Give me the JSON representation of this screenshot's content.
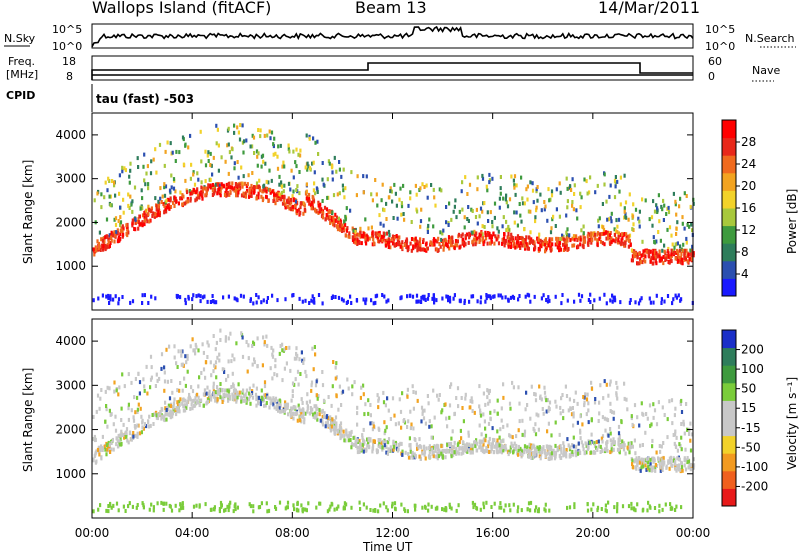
{
  "header": {
    "station": "Wallops Island (fitACF)",
    "beam": "Beam 13",
    "date": "14/Mar/2011"
  },
  "panels": {
    "nsky_label": "N.Sky",
    "nsky_ticks": [
      "10^5",
      "10^0"
    ],
    "nsearch_label": "N.Search",
    "nsearch_ticks": [
      "10^5",
      "10^0"
    ],
    "freq_label_1": "Freq.",
    "freq_label_2": "[MHz]",
    "freq_ticks": [
      "18",
      "8"
    ],
    "nave_label": "Nave",
    "nave_ticks": [
      "60",
      "0"
    ],
    "cpid_label": "CPID",
    "cpid_value": "tau (fast) -503"
  },
  "colors": {
    "power_scale": [
      "#1a1aff",
      "#2b4fb0",
      "#2e7d5b",
      "#3e9a3e",
      "#a8c83c",
      "#f2d22a",
      "#f2a320",
      "#f06a1e",
      "#e8281a",
      "#ff0000"
    ],
    "velocity_scale": [
      "#1a2fc8",
      "#2e7d5b",
      "#3e9a3e",
      "#7acc3a",
      "#c8c8c8",
      "#c8c8c8",
      "#f2d22a",
      "#f29a20",
      "#f0601e",
      "#e81a1a"
    ]
  },
  "chart_data": [
    {
      "type": "heatmap",
      "name": "power",
      "ylabel": "Slant Range [km]",
      "yticks": [
        "1000",
        "2000",
        "3000",
        "4000"
      ],
      "ylim": [
        0,
        4500
      ],
      "xlim": [
        0,
        24
      ],
      "colorbar_label": "Power [dB]",
      "colorbar_ticks": [
        "4",
        "8",
        "12",
        "16",
        "20",
        "24",
        "28"
      ],
      "colorbar_range": [
        0,
        30
      ]
    },
    {
      "type": "heatmap",
      "name": "velocity",
      "ylabel": "Slant Range [km]",
      "yticks": [
        "1000",
        "2000",
        "3000",
        "4000"
      ],
      "ylim": [
        0,
        4500
      ],
      "xlim": [
        0,
        24
      ],
      "colorbar_label": "Velocity [m s⁻¹]",
      "colorbar_ticks": [
        "200",
        "100",
        "50",
        "15",
        "-15",
        "-50",
        "-100",
        "-200"
      ]
    }
  ],
  "xaxis": {
    "label": "Time UT",
    "ticks": [
      "00:00",
      "04:00",
      "08:00",
      "12:00",
      "16:00",
      "20:00",
      "00:00"
    ]
  }
}
